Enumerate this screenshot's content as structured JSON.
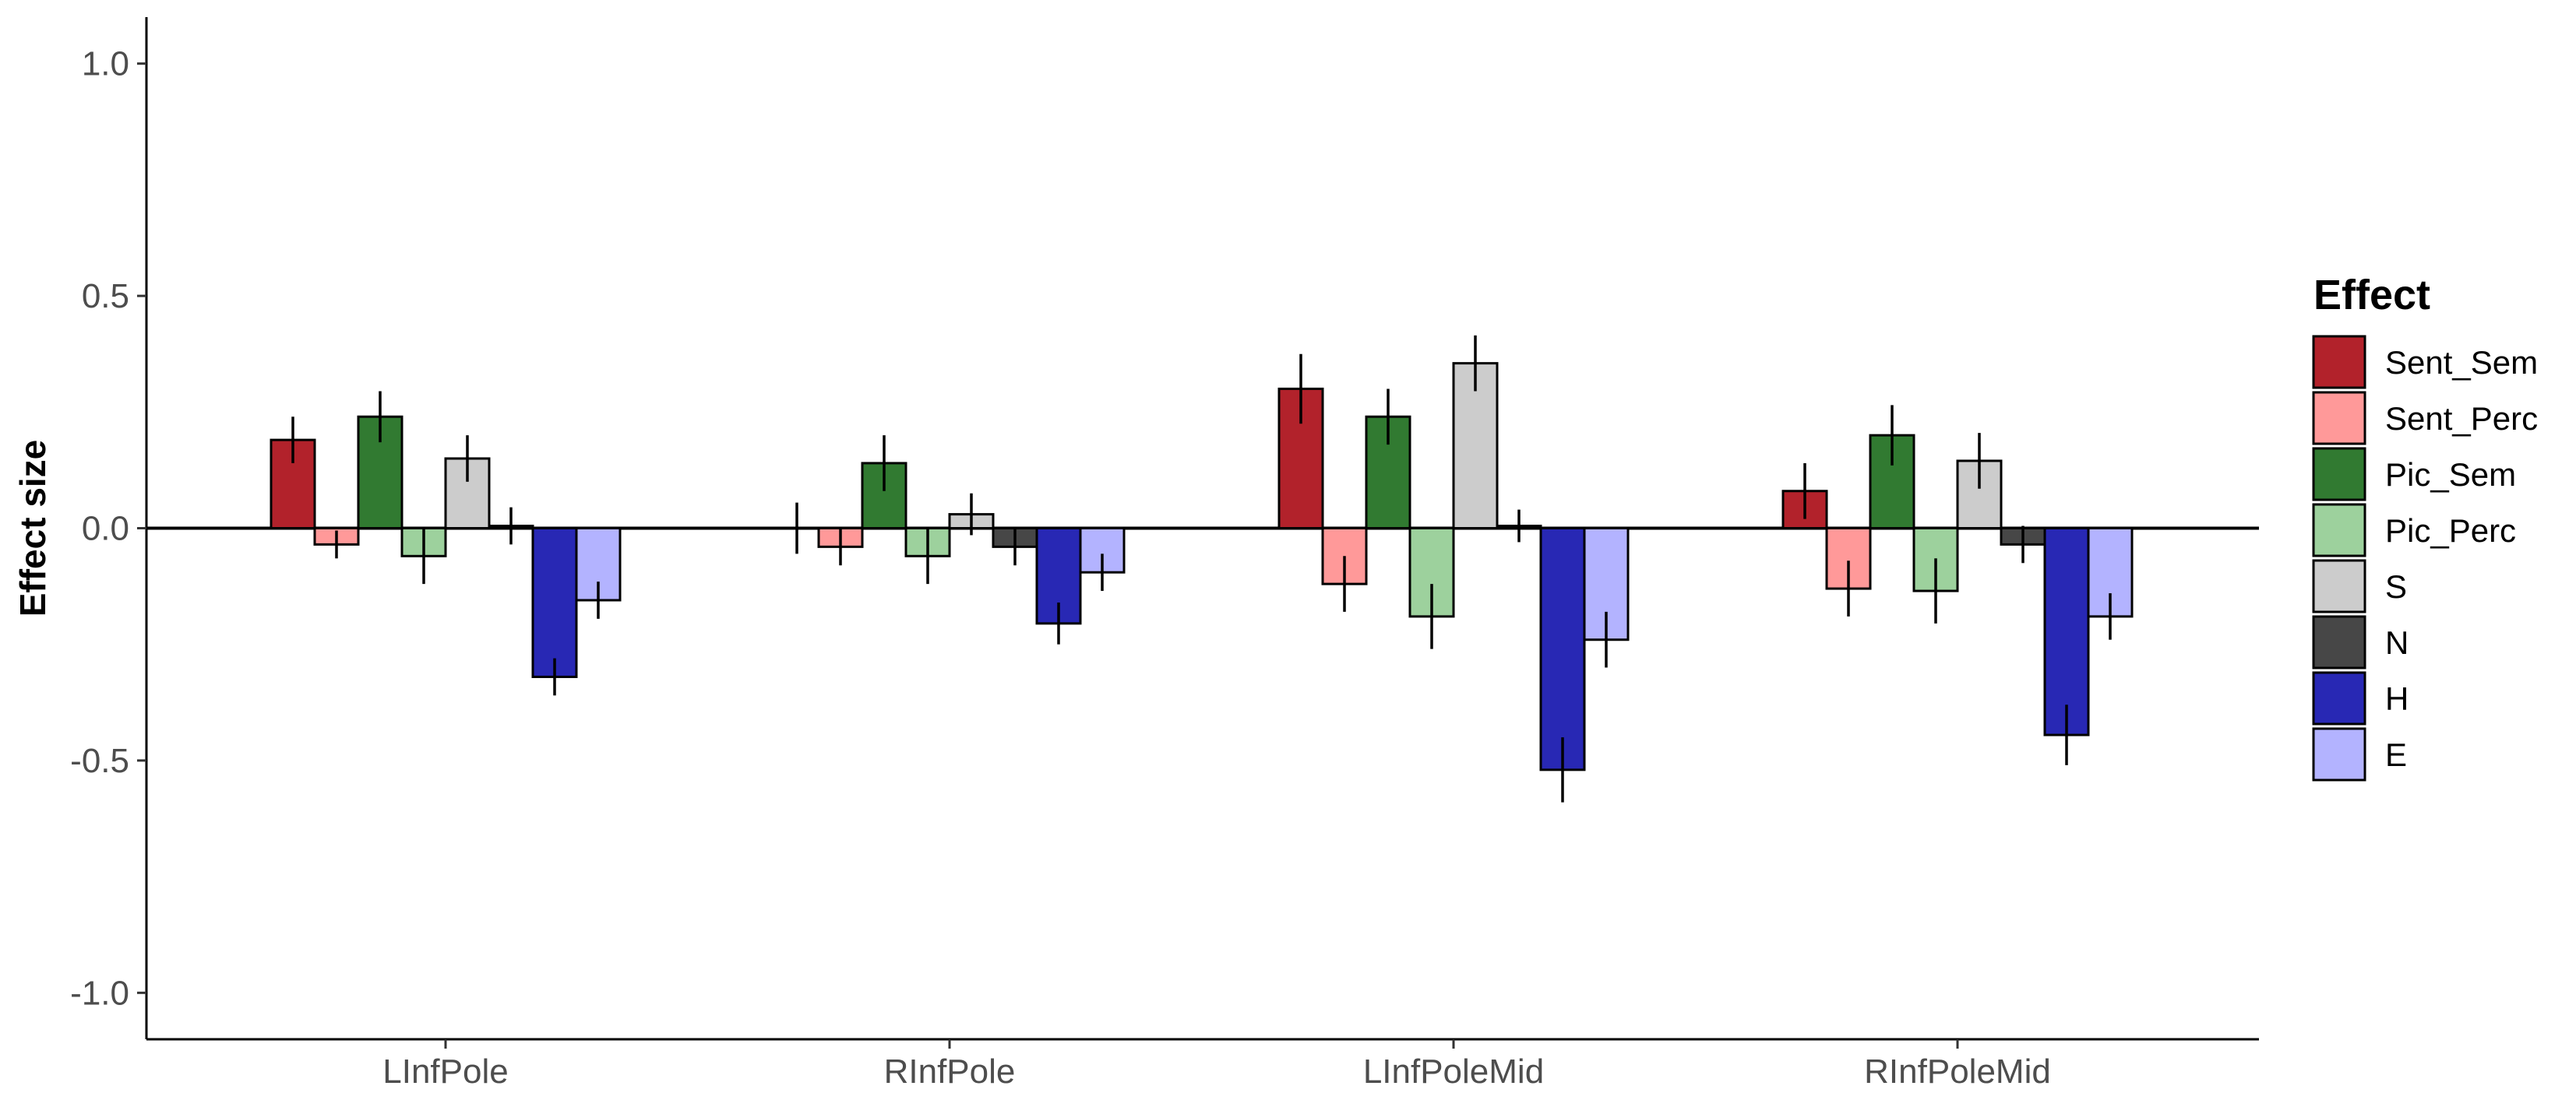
{
  "chart_data": {
    "type": "bar",
    "title": "",
    "xlabel": "",
    "ylabel": "Effect size",
    "ylim": [
      -1.1,
      1.1
    ],
    "yticks": [
      1.0,
      0.5,
      0.0,
      -0.5,
      -1.0
    ],
    "ytick_labels": [
      "1.0",
      "0.5",
      "0.0",
      "-0.5",
      "-1.0"
    ],
    "grid": false,
    "legend": {
      "title": "Effect",
      "position": "right"
    },
    "categories": [
      "LInfPole",
      "RInfPole",
      "LInfPoleMid",
      "RInfPoleMid"
    ],
    "series": [
      {
        "name": "Sent_Sem",
        "color": "#b2222b",
        "values": [
          0.19,
          0.0,
          0.3,
          0.08
        ],
        "error": [
          0.05,
          0.055,
          0.075,
          0.06
        ]
      },
      {
        "name": "Sent_Perc",
        "color": "#ff9999",
        "values": [
          -0.035,
          -0.04,
          -0.12,
          -0.13
        ],
        "error": [
          0.03,
          0.04,
          0.06,
          0.06
        ]
      },
      {
        "name": "Pic_Sem",
        "color": "#317a31",
        "values": [
          0.24,
          0.14,
          0.24,
          0.2
        ],
        "error": [
          0.055,
          0.06,
          0.06,
          0.065
        ]
      },
      {
        "name": "Pic_Perc",
        "color": "#9dd19d",
        "values": [
          -0.06,
          -0.06,
          -0.19,
          -0.135
        ],
        "error": [
          0.06,
          0.06,
          0.07,
          0.07
        ]
      },
      {
        "name": "S",
        "color": "#cccccc",
        "values": [
          0.15,
          0.03,
          0.355,
          0.145
        ],
        "error": [
          0.05,
          0.045,
          0.06,
          0.06
        ]
      },
      {
        "name": "N",
        "color": "#474747",
        "values": [
          0.005,
          -0.04,
          0.005,
          -0.035
        ],
        "error": [
          0.04,
          0.04,
          0.035,
          0.04
        ]
      },
      {
        "name": "H",
        "color": "#2828b4",
        "values": [
          -0.32,
          -0.205,
          -0.52,
          -0.445
        ],
        "error": [
          0.04,
          0.045,
          0.07,
          0.065
        ]
      },
      {
        "name": "E",
        "color": "#b3b3ff",
        "values": [
          -0.155,
          -0.095,
          -0.24,
          -0.19
        ],
        "error": [
          0.04,
          0.04,
          0.06,
          0.05
        ]
      }
    ]
  }
}
